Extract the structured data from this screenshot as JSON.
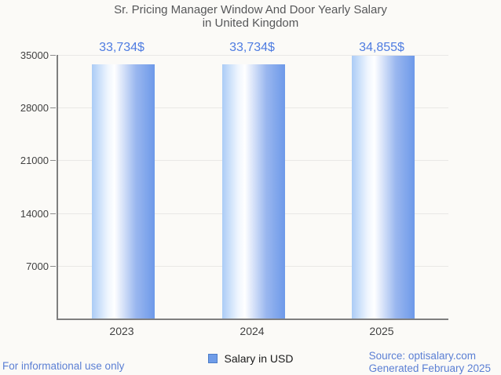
{
  "title": {
    "line1": "Sr. Pricing Manager Window And Door Yearly Salary",
    "line2": "in United Kingdom"
  },
  "chart_data": {
    "type": "bar",
    "categories": [
      "2023",
      "2024",
      "2025"
    ],
    "values": [
      33734,
      33734,
      34855
    ],
    "value_labels": [
      "33,734$",
      "33,734$",
      "34,855$"
    ],
    "title": "Sr. Pricing Manager Window And Door Yearly Salary in United Kingdom",
    "xlabel": "",
    "ylabel": "",
    "ylim": [
      0,
      35000
    ],
    "yticks": [
      7000,
      14000,
      21000,
      28000,
      35000
    ],
    "grid": "on",
    "legend_position": "bottom",
    "legend": "Salary in USD"
  },
  "legend": {
    "label": "Salary in USD"
  },
  "footer": {
    "disclaimer": "For informational use only",
    "source": "Source: optisalary.com",
    "generated": "Generated February 2025"
  },
  "colors": {
    "background": "#fbfaf7",
    "title_text": "#565759",
    "axis": "#7f7f7f",
    "gridline": "#e9e8e6",
    "tick_text": "#424242",
    "value_label_text": "#4e7ce1",
    "footer_text": "#5b7fd4",
    "bar_edge_light": "#abccf6",
    "bar_highlight": "#ffffff",
    "bar_edge_dark": "#6d99e9",
    "legend_swatch": "#6f9ce8"
  }
}
